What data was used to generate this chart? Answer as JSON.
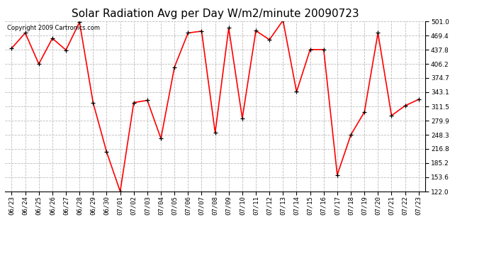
{
  "title": "Solar Radiation Avg per Day W/m2/minute 20090723",
  "copyright": "Copyright 2009 Cartronics.com",
  "labels": [
    "06/23",
    "06/24",
    "06/25",
    "06/26",
    "06/27",
    "06/28",
    "06/29",
    "06/30",
    "07/01",
    "07/02",
    "07/03",
    "07/04",
    "07/05",
    "07/06",
    "07/07",
    "07/08",
    "07/09",
    "07/10",
    "07/11",
    "07/12",
    "07/13",
    "07/14",
    "07/15",
    "07/16",
    "07/17",
    "07/18",
    "07/19",
    "07/20",
    "07/21",
    "07/22",
    "07/23"
  ],
  "values": [
    441,
    475,
    406,
    463,
    437,
    499,
    320,
    210,
    122,
    320,
    325,
    240,
    399,
    475,
    479,
    253,
    486,
    285,
    480,
    460,
    503,
    344,
    438,
    438,
    159,
    248,
    299,
    475,
    291,
    313,
    327
  ],
  "line_color": "#ff0000",
  "marker_color": "#000000",
  "bg_color": "#ffffff",
  "grid_color": "#bbbbbb",
  "ylim_min": 122.0,
  "ylim_max": 501.0,
  "yticks": [
    122.0,
    153.6,
    185.2,
    216.8,
    248.3,
    279.9,
    311.5,
    343.1,
    374.7,
    406.2,
    437.8,
    469.4,
    501.0
  ],
  "title_fontsize": 11,
  "copyright_fontsize": 6,
  "tick_fontsize": 6.5
}
